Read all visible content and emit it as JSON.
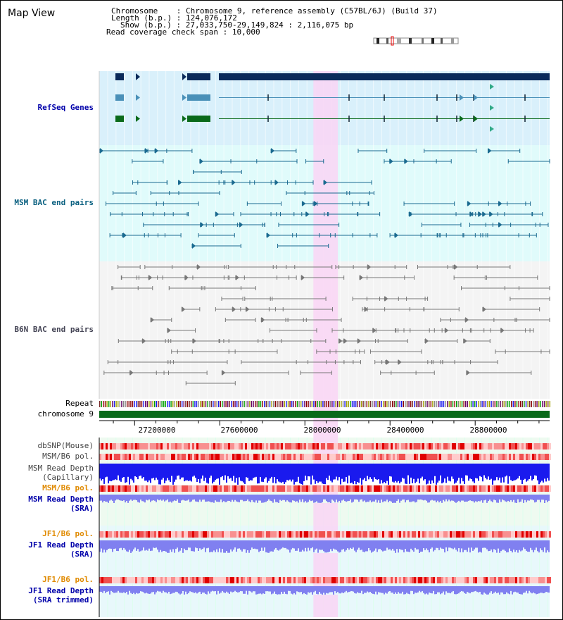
{
  "title": "Map View",
  "header": {
    "chromosome_label": "Chromosome",
    "chromosome_value": "Chromosome 9, reference assembly (C57BL/6J) (Build 37)",
    "length_label": "Length (b.p.)",
    "length_value": "124,076,172",
    "show_label": "Show (b.p.)",
    "show_value": "27,033,750-29,149,824 : 2,116,075 bp",
    "coverage_label": "Read coverage check span",
    "coverage_value": "10,000"
  },
  "tracks": {
    "refseq": "RefSeq Genes",
    "msm_bac": "MSM BAC end pairs",
    "b6n_bac": "B6N BAC end pairs",
    "repeat": "Repeat",
    "chromosome": "chromosome 9",
    "dbsnp": "dbSNP(Mouse)",
    "msm_b6_pol_1": "MSM/B6 pol.",
    "msm_depth_cap_1": "MSM Read Depth",
    "msm_depth_cap_2": "(Capillary)",
    "msm_b6_pol_2": "MSM/B6 pol.",
    "msm_depth_sra_1": "MSM Read Depth",
    "msm_depth_sra_2": "(SRA)",
    "jf1_b6_pol_1": "JF1/B6 pol.",
    "jf1_depth_sra_1": "JF1 Read Depth",
    "jf1_depth_sra_2": "(SRA)",
    "jf1_b6_pol_2": "JF1/B6 pol.",
    "jf1_depth_trim_1": "JF1 Read Depth",
    "jf1_depth_trim_2": "(SRA trimmed)"
  },
  "axis": {
    "start": 27033750,
    "end": 29149824,
    "ticks": [
      "27200000",
      "27600000",
      "28000000",
      "28400000",
      "28800000"
    ]
  },
  "highlight": {
    "start": 28040000,
    "end": 28155000
  },
  "colors": {
    "refseq_bg": "#d9f0fb",
    "msm_bac_bg": "#e0fbfb",
    "b6n_bac_bg": "#f4f4f4",
    "highlight": "#f9d5f5",
    "gene_dark": "#0a2a5a",
    "gene_mid": "#4a90b8",
    "gene_green": "#0a6a1a",
    "chromosome": "#0a6a1a",
    "blue_depth": "#1a1aee",
    "light_depth": "#8080f0"
  }
}
